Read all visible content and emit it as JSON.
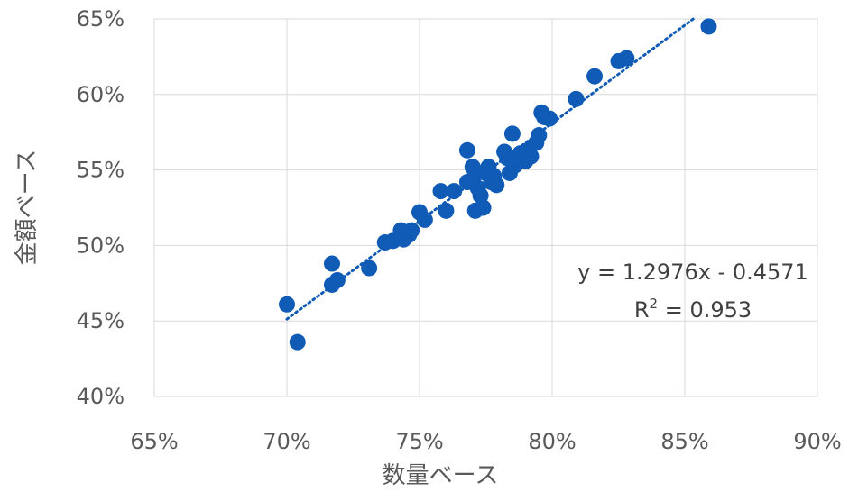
{
  "chart_data": {
    "type": "scatter",
    "title": "",
    "xlabel": "数量ベース",
    "ylabel": "金額ベース",
    "xlim": [
      0.65,
      0.9
    ],
    "ylim": [
      0.4,
      0.65
    ],
    "x_ticks": [
      "65%",
      "70%",
      "75%",
      "80%",
      "85%",
      "90%"
    ],
    "y_ticks": [
      "40%",
      "45%",
      "50%",
      "55%",
      "60%",
      "65%"
    ],
    "grid": true,
    "legend": "none",
    "marker_color": "#0F5BB5",
    "trendline": {
      "type": "linear",
      "slope": 1.2976,
      "intercept": -0.4571,
      "equation": "y = 1.2976x - 0.4571",
      "r2_prefix": "R",
      "r2_sup": "2",
      "r2_value": " = 0.953",
      "style": "dotted",
      "color": "#0F5BB5"
    },
    "points": [
      {
        "x": 0.7,
        "y": 0.461
      },
      {
        "x": 0.704,
        "y": 0.436
      },
      {
        "x": 0.717,
        "y": 0.488
      },
      {
        "x": 0.717,
        "y": 0.474
      },
      {
        "x": 0.719,
        "y": 0.477
      },
      {
        "x": 0.731,
        "y": 0.485
      },
      {
        "x": 0.737,
        "y": 0.502
      },
      {
        "x": 0.74,
        "y": 0.503
      },
      {
        "x": 0.743,
        "y": 0.51
      },
      {
        "x": 0.744,
        "y": 0.504
      },
      {
        "x": 0.746,
        "y": 0.507
      },
      {
        "x": 0.747,
        "y": 0.51
      },
      {
        "x": 0.75,
        "y": 0.522
      },
      {
        "x": 0.752,
        "y": 0.517
      },
      {
        "x": 0.758,
        "y": 0.536
      },
      {
        "x": 0.76,
        "y": 0.523
      },
      {
        "x": 0.763,
        "y": 0.536
      },
      {
        "x": 0.768,
        "y": 0.563
      },
      {
        "x": 0.768,
        "y": 0.542
      },
      {
        "x": 0.77,
        "y": 0.552
      },
      {
        "x": 0.771,
        "y": 0.547
      },
      {
        "x": 0.772,
        "y": 0.538
      },
      {
        "x": 0.771,
        "y": 0.523
      },
      {
        "x": 0.773,
        "y": 0.533
      },
      {
        "x": 0.774,
        "y": 0.525
      },
      {
        "x": 0.775,
        "y": 0.548
      },
      {
        "x": 0.776,
        "y": 0.552
      },
      {
        "x": 0.777,
        "y": 0.542
      },
      {
        "x": 0.778,
        "y": 0.546
      },
      {
        "x": 0.779,
        "y": 0.54
      },
      {
        "x": 0.782,
        "y": 0.562
      },
      {
        "x": 0.783,
        "y": 0.558
      },
      {
        "x": 0.784,
        "y": 0.548
      },
      {
        "x": 0.785,
        "y": 0.574
      },
      {
        "x": 0.786,
        "y": 0.553
      },
      {
        "x": 0.787,
        "y": 0.557
      },
      {
        "x": 0.788,
        "y": 0.561
      },
      {
        "x": 0.79,
        "y": 0.556
      },
      {
        "x": 0.791,
        "y": 0.563
      },
      {
        "x": 0.792,
        "y": 0.559
      },
      {
        "x": 0.794,
        "y": 0.568
      },
      {
        "x": 0.795,
        "y": 0.573
      },
      {
        "x": 0.796,
        "y": 0.588
      },
      {
        "x": 0.797,
        "y": 0.585
      },
      {
        "x": 0.799,
        "y": 0.584
      },
      {
        "x": 0.809,
        "y": 0.597
      },
      {
        "x": 0.816,
        "y": 0.612
      },
      {
        "x": 0.825,
        "y": 0.622
      },
      {
        "x": 0.828,
        "y": 0.624
      },
      {
        "x": 0.859,
        "y": 0.645
      }
    ]
  }
}
